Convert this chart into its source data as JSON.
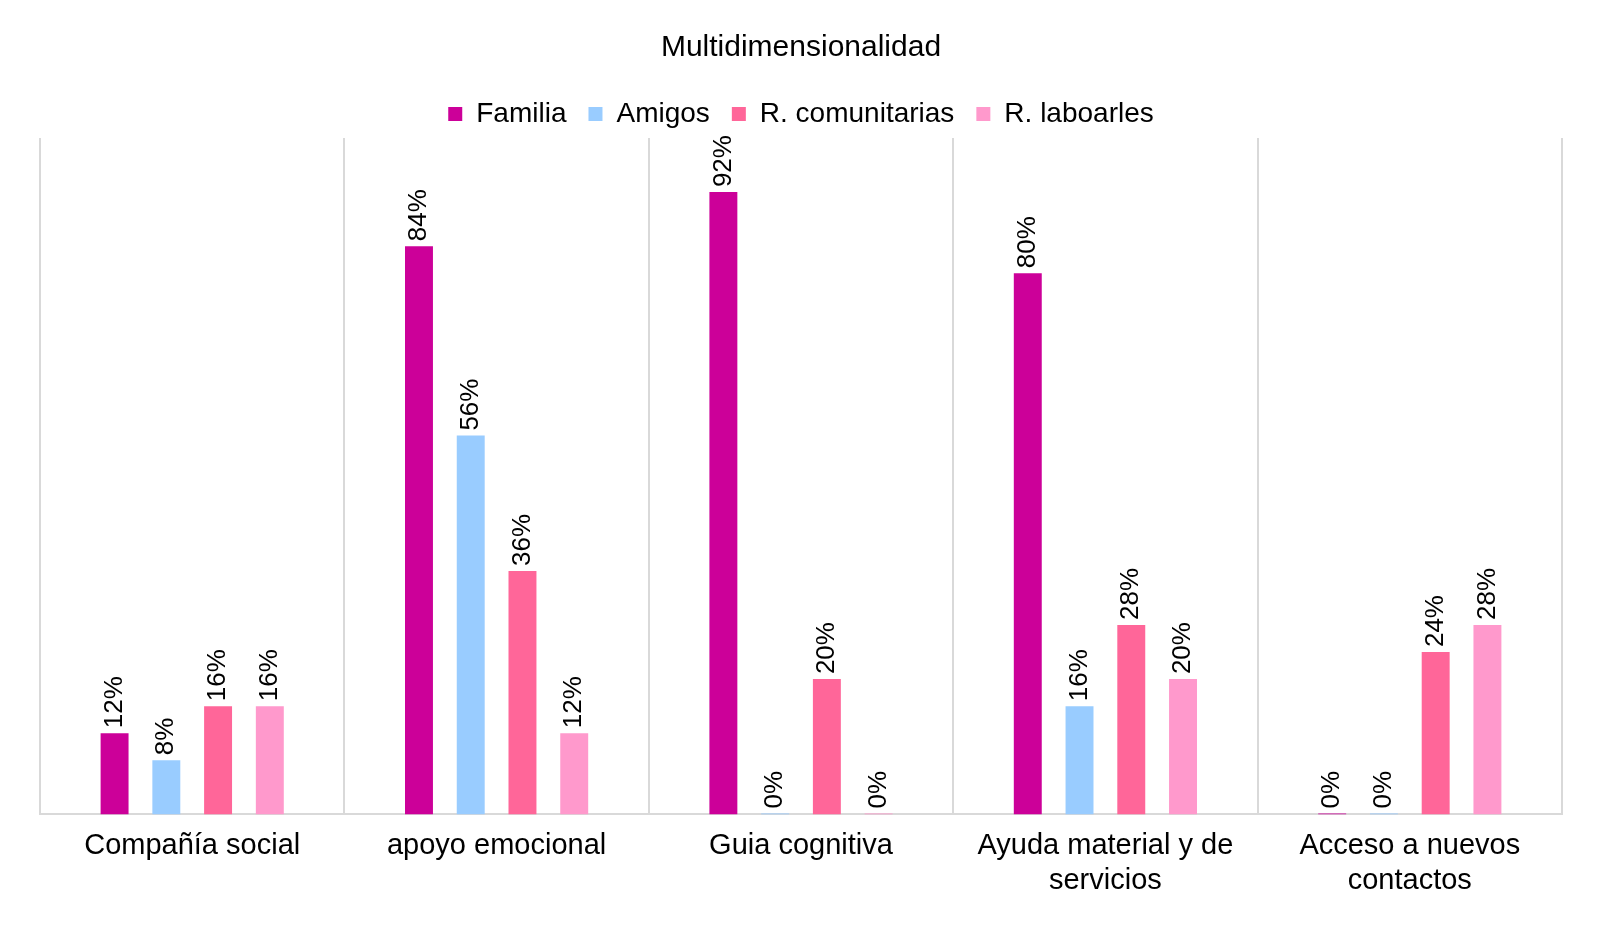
{
  "chart_data": {
    "type": "bar",
    "title": "Multidimensionalidad",
    "categories": [
      "Compañía social",
      "apoyo emocional",
      "Guia cognitiva",
      "Ayuda material y de servicios",
      "Acceso a nuevos contactos"
    ],
    "series": [
      {
        "name": "Familia",
        "color": "#cc0099",
        "values": [
          12,
          84,
          92,
          80,
          0
        ],
        "value_labels": [
          "12%",
          "84%",
          "92%",
          "80%",
          "0%"
        ]
      },
      {
        "name": "Amigos",
        "color": "#99ccff",
        "values": [
          8,
          56,
          0,
          16,
          0
        ],
        "value_labels": [
          "8%",
          "56%",
          "0%",
          "16%",
          "0%"
        ]
      },
      {
        "name": "R. comunitarias",
        "color": "#ff6699",
        "values": [
          16,
          36,
          20,
          28,
          24
        ],
        "value_labels": [
          "16%",
          "36%",
          "20%",
          "28%",
          "24%"
        ]
      },
      {
        "name": "R. laboarles",
        "color": "#ff99cc",
        "values": [
          16,
          12,
          0,
          20,
          28
        ],
        "value_labels": [
          "16%",
          "12%",
          "0%",
          "20%",
          "28%"
        ]
      }
    ],
    "ylim": [
      0,
      100
    ],
    "grid": "x",
    "legend": "top"
  }
}
